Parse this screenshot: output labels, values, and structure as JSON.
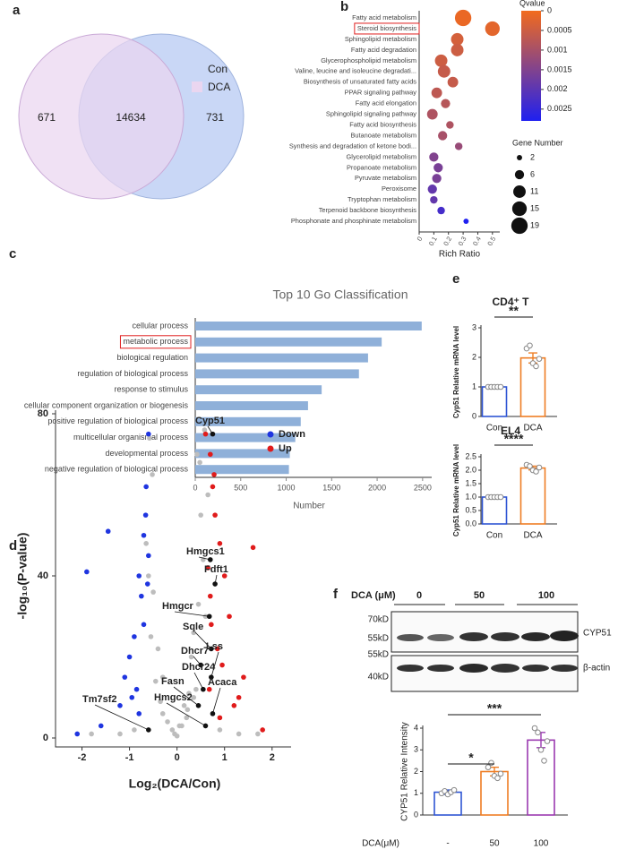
{
  "chart_data": [
    {
      "type": "venn",
      "panel": "a",
      "sets": [
        {
          "name": "Con",
          "color": "#c9d7f6"
        },
        {
          "name": "DCA",
          "color": "#ead6f0"
        }
      ],
      "values": [
        671,
        14634,
        731
      ]
    },
    {
      "type": "bubble",
      "panel": "b",
      "categories": [
        "Fatty acid metabolism",
        "Steroid biosynthesis",
        "Sphingolipid metabolism",
        "Fatty acid degradation",
        "Glycerophospholipid metabolism",
        "Valine, leucine and isoleucine degradati...",
        "Biosynthesis of unsaturated fatty acids",
        "PPAR signaling pathway",
        "Fatty acid elongation",
        "Sphingolipid signaling pathway",
        "Fatty acid biosynthesis",
        "Butanoate metabolism",
        "Synthesis and degradation of ketone bodi...",
        "Glycerolipid metabolism",
        "Propanoate metabolism",
        "Pyruvate metabolism",
        "Peroxisome",
        "Tryptophan metabolism",
        "Terpenoid backbone biosynthesis",
        "Phosphonate and phosphinate metabolism"
      ],
      "x": [
        0.3,
        0.5,
        0.26,
        0.26,
        0.15,
        0.17,
        0.23,
        0.12,
        0.18,
        0.09,
        0.21,
        0.16,
        0.27,
        0.1,
        0.13,
        0.12,
        0.09,
        0.1,
        0.15,
        0.32
      ],
      "size": [
        19,
        15,
        11,
        11,
        11,
        11,
        8,
        8,
        6,
        8,
        4,
        6,
        4,
        6,
        6,
        6,
        6,
        4,
        4,
        2
      ],
      "qvalue": [
        0.0001,
        0.0002,
        0.0004,
        0.0005,
        0.0005,
        0.0006,
        0.0006,
        0.0007,
        0.0008,
        0.0009,
        0.0009,
        0.001,
        0.0012,
        0.0015,
        0.0016,
        0.0016,
        0.0019,
        0.0019,
        0.0023,
        0.0028
      ],
      "highlight": 1,
      "xlabel": "Rich Ratio",
      "xlim": [
        0,
        0.55
      ],
      "xticks": [
        0,
        0.1,
        0.2,
        0.3,
        0.4,
        0.5
      ],
      "color_title": "Qvalue",
      "clim": [
        0,
        0.0028
      ],
      "cticks": [
        0,
        0.0005,
        0.001,
        0.0015,
        0.002,
        0.0025
      ],
      "colors": [
        "#f26b1d",
        "#1f20f0"
      ],
      "size_title": "Gene Number",
      "size_ticks": [
        2,
        6,
        11,
        15,
        19
      ]
    },
    {
      "type": "hbar",
      "panel": "c",
      "title": "Top 10 Go Classification",
      "categories": [
        "cellular process",
        "metabolic process",
        "biological regulation",
        "regulation of biological process",
        "response to stimulus",
        "cellular component organization or biogenesis",
        "positive regulation of biological process",
        "multicellular organismal process",
        "developmental process",
        "negative regulation of biological process"
      ],
      "values": [
        2490,
        2050,
        1900,
        1800,
        1390,
        1240,
        1160,
        1100,
        1040,
        1030
      ],
      "color": "#8fb0d9",
      "highlight": 1,
      "xlabel": "Number",
      "xlim": [
        0,
        2600
      ],
      "xticks": [
        0,
        500,
        1000,
        1500,
        2000,
        2500
      ]
    },
    {
      "type": "scatter",
      "panel": "d",
      "xlabel": "Log₂(DCA/Con)",
      "ylabel": "-log₁₀(P-value)",
      "xlim": [
        -2.5,
        2.4
      ],
      "ylim": [
        0,
        80
      ],
      "xticks": [
        -2,
        -1,
        0,
        1,
        2
      ],
      "yticks": [
        0,
        40,
        80
      ],
      "series": [
        {
          "color": "#bdbdbd",
          "x": [
            -0.1,
            0.05,
            0.2,
            -0.3,
            0.35,
            -0.45,
            0.5,
            -0.55,
            0.6,
            -0.2,
            0.15,
            0.4,
            -0.35,
            0.25,
            -0.6,
            0.55,
            -0.5,
            0.45,
            0.3,
            -0.4,
            0.65,
            -0.65,
            0.1,
            -0.05,
            0.5,
            -0.3,
            0.35,
            -1.2,
            1.3,
            -1.8,
            1.7,
            -0.9,
            0.9,
            0.0,
            0.42,
            -0.58,
            0.58,
            -0.52,
            0.48,
            0.22
          ],
          "y": [
            2,
            3,
            5,
            6,
            10,
            14,
            18,
            25,
            30,
            4,
            8,
            12,
            9,
            11,
            40,
            44,
            36,
            33,
            20,
            22,
            60,
            48,
            3,
            1,
            55,
            15,
            26,
            1,
            1,
            1,
            1,
            2,
            2,
            0.5,
            70,
            74,
            76,
            65,
            68,
            7
          ]
        },
        {
          "name": "Down",
          "color": "#1f35e0",
          "x": [
            -0.6,
            -0.65,
            -0.7,
            -0.8,
            -0.75,
            -0.9,
            -1.0,
            -1.1,
            -0.6,
            -0.62,
            -0.85,
            -1.45,
            -1.9,
            -1.6,
            -0.7,
            -0.95,
            -0.66,
            -1.2,
            -0.8,
            -2.1
          ],
          "y": [
            75,
            62,
            50,
            40,
            35,
            25,
            20,
            15,
            45,
            38,
            12,
            51,
            41,
            3,
            28,
            10,
            55,
            8,
            6,
            1
          ]
        },
        {
          "name": "Up",
          "color": "#e01b1b",
          "x": [
            0.6,
            0.7,
            0.75,
            0.8,
            0.9,
            1.0,
            1.1,
            0.65,
            0.85,
            1.3,
            1.6,
            1.4,
            0.7,
            0.95,
            1.2,
            0.78,
            1.8,
            0.72,
            0.68,
            0.9
          ],
          "y": [
            75,
            70,
            62,
            55,
            48,
            40,
            30,
            42,
            22,
            10,
            47,
            15,
            35,
            18,
            8,
            65,
            2,
            28,
            12,
            5
          ]
        }
      ],
      "annotations": [
        {
          "text": "Cyp51",
          "x": 0.75,
          "y": 75
        },
        {
          "text": "Hmgcs1",
          "x": 0.7,
          "y": 44
        },
        {
          "text": "Fdft1",
          "x": 0.8,
          "y": 38
        },
        {
          "text": "Hmgcr",
          "x": 0.68,
          "y": 30
        },
        {
          "text": "Sqle",
          "x": 0.72,
          "y": 22
        },
        {
          "text": "Lss",
          "x": 0.72,
          "y": 15
        },
        {
          "text": "Dhcr7",
          "x": 0.5,
          "y": 18
        },
        {
          "text": "Dhcr24",
          "x": 0.55,
          "y": 12
        },
        {
          "text": "Fasn",
          "x": 0.45,
          "y": 8
        },
        {
          "text": "Acaca",
          "x": 0.75,
          "y": 6
        },
        {
          "text": "Hmgcs2",
          "x": 0.6,
          "y": 3
        },
        {
          "text": "Tm7sf2",
          "x": -0.6,
          "y": 2
        }
      ]
    },
    {
      "type": "bar_dot",
      "panel": "e",
      "title": "CD4⁺ T",
      "ylabel": "Cyp51 Relative mRNA level",
      "categories": [
        "Con",
        "DCA"
      ],
      "values": [
        1.0,
        1.98
      ],
      "errors": [
        0.02,
        0.17
      ],
      "points": [
        [
          1,
          1,
          1,
          1,
          1
        ],
        [
          2.3,
          2.4,
          1.8,
          1.7,
          1.95
        ]
      ],
      "colors": [
        "#2f55d4",
        "#ee7d24"
      ],
      "ylim": [
        0,
        3
      ],
      "yticks": [
        0,
        1,
        2,
        3
      ],
      "significance": [
        {
          "from": 0,
          "to": 1,
          "label": "**"
        }
      ]
    },
    {
      "type": "bar_dot",
      "title": "EL4",
      "ylabel": "Cyp51 Relative mRNA level",
      "categories": [
        "Con",
        "DCA"
      ],
      "values": [
        1.0,
        2.08
      ],
      "errors": [
        0.01,
        0.07
      ],
      "points": [
        [
          1,
          1,
          1,
          1,
          1
        ],
        [
          2.2,
          2.15,
          2.0,
          1.95,
          2.1
        ]
      ],
      "colors": [
        "#2f55d4",
        "#ee7d24"
      ],
      "ylim": [
        0,
        2.5
      ],
      "yticks": [
        {
          "value": 0,
          "label": "0.0"
        },
        {
          "value": 0.5,
          "label": "0.5"
        },
        {
          "value": 1,
          "label": "1.0"
        },
        {
          "value": 1.5,
          "label": "1.5"
        },
        {
          "value": 2,
          "label": "2.0"
        },
        {
          "value": 2.5,
          "label": "2.5"
        }
      ],
      "significance": [
        {
          "from": 0,
          "to": 1,
          "label": "****"
        }
      ]
    },
    {
      "type": "bar_dot",
      "ylabel": "CYP51 Relative Intensity",
      "xlabel": "DCA(μM)",
      "categories": [
        "-",
        "50",
        "100"
      ],
      "values": [
        1.05,
        2.0,
        3.45
      ],
      "errors": [
        0.1,
        0.2,
        0.35
      ],
      "points": [
        [
          1.0,
          1.1,
          0.95,
          1.05,
          1.15
        ],
        [
          2.2,
          2.4,
          1.8,
          1.7,
          1.9
        ],
        [
          4.0,
          3.8,
          3.0,
          2.5,
          3.4
        ]
      ],
      "colors": [
        "#2f55d4",
        "#ee7d24",
        "#9b3ab0"
      ],
      "ylim": [
        0,
        4
      ],
      "yticks": [
        0,
        1,
        2,
        3,
        4
      ],
      "significance": [
        {
          "from": 0,
          "to": 1,
          "label": "*"
        },
        {
          "from": 0,
          "to": 2,
          "label": "***"
        }
      ]
    }
  ],
  "blot": {
    "panel": "f",
    "treatment_label": "DCA (μM)",
    "doses": [
      "0",
      "50",
      "100"
    ],
    "markers": [
      "70kD",
      "55kD",
      "55kD",
      "40kD"
    ],
    "proteins": [
      "CYP51",
      "β-actin"
    ]
  }
}
